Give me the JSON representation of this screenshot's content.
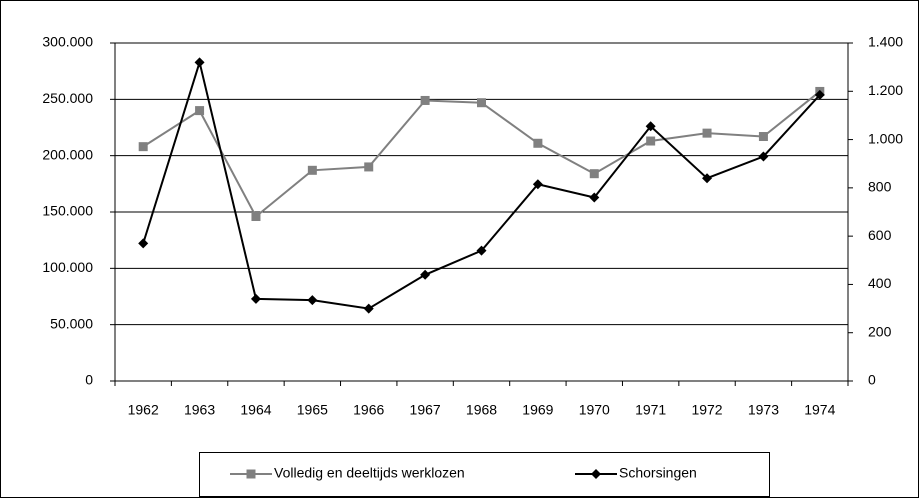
{
  "chart_data": {
    "type": "line",
    "categories": [
      "1962",
      "1963",
      "1964",
      "1965",
      "1966",
      "1967",
      "1968",
      "1969",
      "1970",
      "1971",
      "1972",
      "1973",
      "1974"
    ],
    "series": [
      {
        "name": "Volledig en deeltijds werklozen",
        "color": "#808080",
        "marker": "square",
        "values": [
          208000,
          240000,
          146000,
          187000,
          190000,
          249000,
          247000,
          211000,
          184000,
          213000,
          220000,
          217000,
          257000
        ]
      },
      {
        "name": "Schorsingen",
        "color": "#000000",
        "marker": "diamond",
        "axis": "y2",
        "values": [
          570,
          1320,
          340,
          335,
          300,
          440,
          540,
          815,
          760,
          1055,
          840,
          930,
          1185
        ]
      }
    ],
    "ylim": [
      0,
      300000
    ],
    "yticks": [
      0,
      {
        "value": 50000,
        "label": "50.000"
      },
      {
        "value": 100000,
        "label": "100.000"
      },
      {
        "value": 150000,
        "label": "150.000"
      },
      {
        "value": 200000,
        "label": "200.000"
      },
      {
        "value": 250000,
        "label": "250.000"
      },
      {
        "value": 300000,
        "label": "300.000"
      }
    ],
    "y2lim": [
      0,
      1400
    ],
    "y2ticks": [
      0,
      200,
      400,
      600,
      800,
      {
        "value": 1000,
        "label": "1.000"
      },
      {
        "value": 1200,
        "label": "1.200"
      },
      {
        "value": 1400,
        "label": "1.400"
      }
    ],
    "grid": true,
    "legend": "bottom"
  }
}
